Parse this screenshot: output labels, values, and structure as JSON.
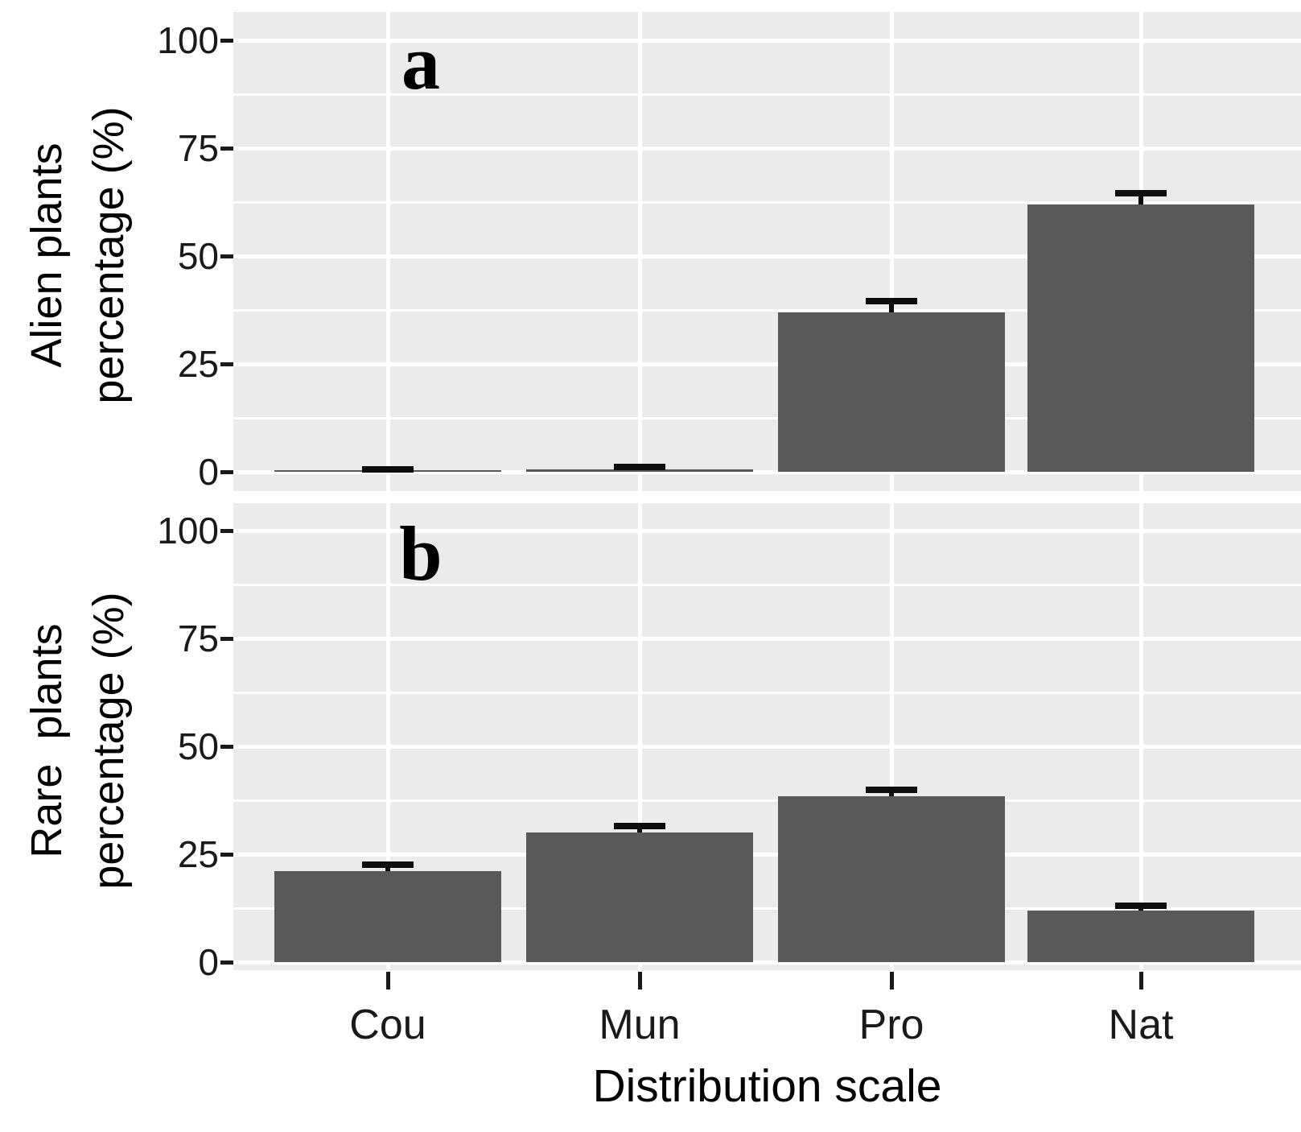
{
  "figure": {
    "background": "#ffffff",
    "panel_bg": "#ebebeb",
    "grid_color": "#ffffff",
    "bar_color": "#595959",
    "error_color": "#0d0d0d",
    "text_color": "#000000",
    "xlabel": "Distribution scale",
    "categories": [
      "Cou",
      "Mun",
      "Pro",
      "Nat"
    ]
  },
  "chart_data": [
    {
      "type": "bar",
      "panel_label": "a",
      "ylabel": "Alien plants\npercentage (%)",
      "xlabel": "Distribution scale",
      "categories": [
        "Cou",
        "Mun",
        "Pro",
        "Nat"
      ],
      "values": [
        0.2,
        0.6,
        37,
        62
      ],
      "error_upper": [
        0.5,
        1.1,
        39.5,
        64.5
      ],
      "ylim": [
        0,
        100
      ],
      "yticks": [
        0,
        25,
        50,
        75,
        100
      ],
      "y_minor": [
        12.5,
        37.5,
        62.5,
        87.5
      ],
      "grid": "major and minor white gridlines on gray panel",
      "legend": "none"
    },
    {
      "type": "bar",
      "panel_label": "b",
      "ylabel": "Rare  plants\npercentage (%)",
      "xlabel": "Distribution scale",
      "categories": [
        "Cou",
        "Mun",
        "Pro",
        "Nat"
      ],
      "values": [
        21,
        30,
        38.5,
        12
      ],
      "error_upper": [
        22.5,
        31.5,
        40,
        13
      ],
      "ylim": [
        0,
        100
      ],
      "yticks": [
        0,
        25,
        50,
        75,
        100
      ],
      "y_minor": [
        12.5,
        37.5,
        62.5,
        87.5
      ],
      "grid": "major and minor white gridlines on gray panel",
      "legend": "none"
    }
  ]
}
